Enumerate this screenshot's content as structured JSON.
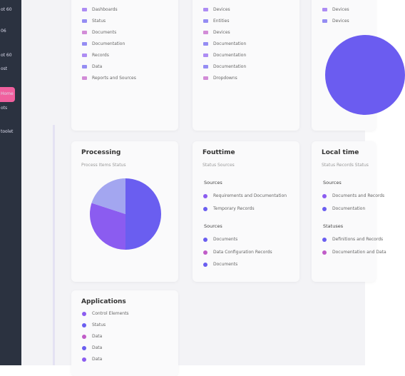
{
  "sidebar": {
    "items": [
      "ot 60",
      "06",
      "ot 60",
      "ost",
      "Home",
      "ots",
      "toolet"
    ],
    "active": 4,
    "color": "#2b3240",
    "active_color": "#f0609e"
  },
  "cards": [
    {
      "items": [
        "Dashboards",
        "Status",
        "Documents",
        "Documentation",
        "Records",
        "Data",
        "Reports and Sources"
      ]
    },
    {
      "items": [
        "Devices",
        "Entities",
        "Devices",
        "Documentation",
        "Documentation",
        "Documentation",
        "Dropdowns"
      ]
    },
    {
      "items": [
        "Devices",
        "Devices"
      ],
      "pie": {
        "values": [
          100
        ],
        "colors": [
          "#6b5cf0"
        ]
      }
    },
    {
      "title": "Processing",
      "subtitle": "Process Items Status",
      "pie": {
        "values": [
          50,
          30,
          20
        ],
        "colors": [
          "#6a5ef0",
          "#8b5cf0",
          "#a3a6f0"
        ]
      }
    },
    {
      "title": "Fouttime",
      "subtitle": "Status Sources",
      "sections": [
        {
          "heading": "Sources",
          "items": [
            "Requirements and Documentation",
            "Temporary Records"
          ]
        },
        {
          "heading": "Sources",
          "items": [
            "Documents",
            "Data Configuration Records",
            "Documents"
          ]
        }
      ]
    },
    {
      "title": "Local time",
      "subtitle": "Status Records Status",
      "sections": [
        {
          "heading": "Sources",
          "items": [
            "Documents and Records",
            "Documentation"
          ]
        },
        {
          "heading": "Statuses",
          "items": [
            "Definitions and Records",
            "Documentation and Data"
          ]
        }
      ]
    },
    {
      "title": "Applications",
      "items": [
        "Control Elements",
        "Status",
        "Data",
        "Data",
        "Data"
      ]
    }
  ]
}
